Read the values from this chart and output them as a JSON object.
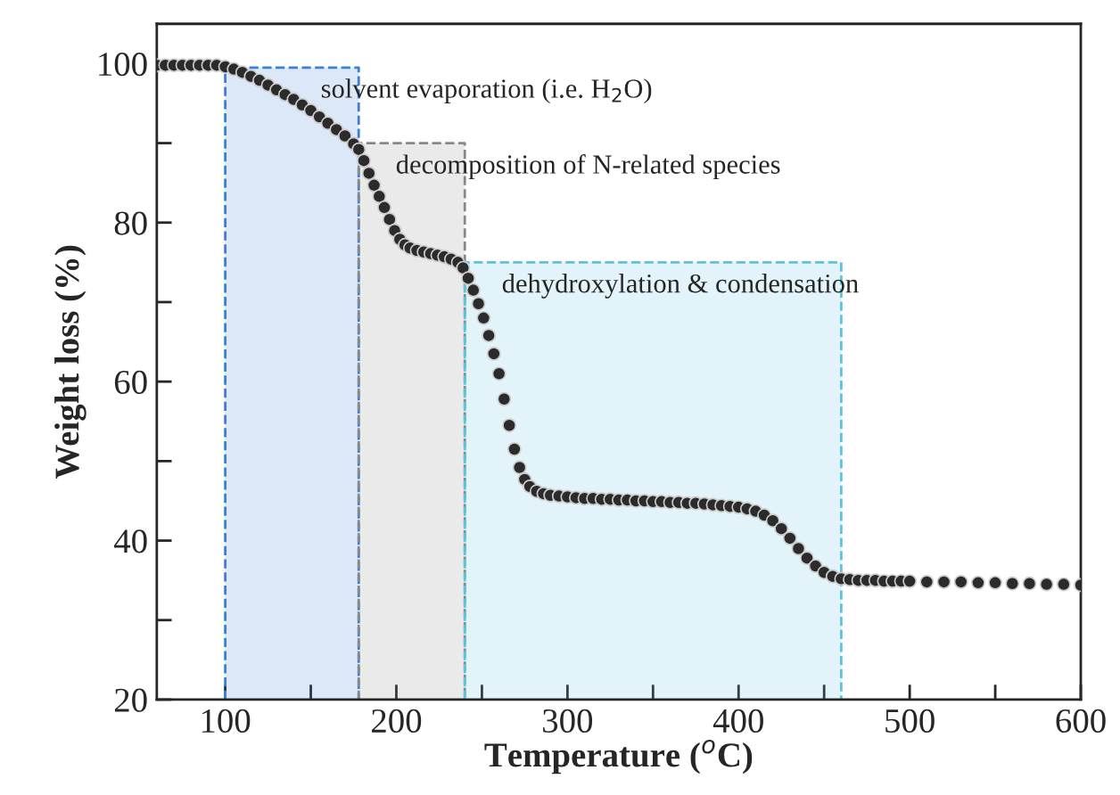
{
  "chart_data": {
    "type": "scatter",
    "xlabel": "Temperature ($^{o}$C)",
    "ylabel": "Weight loss (%)",
    "xlim": [
      60,
      600
    ],
    "ylim": [
      20,
      105
    ],
    "xticks": [
      100,
      {
        "value": 150,
        "label": null
      },
      200,
      {
        "value": 250,
        "label": null
      },
      300,
      {
        "value": 350,
        "label": null
      },
      400,
      {
        "value": 450,
        "label": null
      },
      500,
      {
        "value": 550,
        "label": null
      },
      600
    ],
    "yticks": [
      20,
      {
        "value": 30,
        "label": null
      },
      40,
      {
        "value": 50,
        "label": null
      },
      60,
      {
        "value": 70,
        "label": null
      },
      80,
      {
        "value": 90,
        "label": null
      },
      100
    ],
    "grid": false,
    "legend": false,
    "series": [
      {
        "type": "area",
        "color": "#3b7fd9",
        "line_style": "dashed",
        "x": [
          100,
          178
        ],
        "values": [
          99.5,
          99.5
        ]
      },
      {
        "type": "area",
        "color": "#888888",
        "line_style": "dashed",
        "x": [
          178,
          240
        ],
        "values": [
          90,
          90
        ]
      },
      {
        "type": "area",
        "color": "#5cc3dd",
        "line_style": "dashed",
        "x": [
          240,
          460
        ],
        "values": [
          75,
          75
        ]
      },
      {
        "color": "#2b2b2b",
        "marker": "circle",
        "x": [
          60,
          65,
          70,
          75,
          80,
          85,
          90,
          95,
          100,
          105,
          110,
          115,
          120,
          125,
          130,
          135,
          140,
          145,
          150,
          155,
          160,
          165,
          170,
          175,
          178,
          181,
          184,
          187,
          190,
          193,
          196,
          199,
          202,
          205,
          208,
          212,
          216,
          220,
          224,
          228,
          232,
          236,
          239,
          242,
          245,
          248,
          251,
          254,
          257,
          260,
          263,
          266,
          269,
          272,
          275,
          278,
          282,
          286,
          290,
          295,
          300,
          305,
          310,
          315,
          320,
          325,
          330,
          335,
          340,
          345,
          350,
          355,
          360,
          365,
          370,
          375,
          380,
          385,
          390,
          395,
          400,
          405,
          410,
          415,
          420,
          425,
          430,
          435,
          440,
          445,
          450,
          455,
          460,
          465,
          470,
          475,
          480,
          485,
          490,
          495,
          500,
          510,
          520,
          530,
          540,
          550,
          560,
          570,
          580,
          590,
          600
        ],
        "values": [
          99.8,
          99.8,
          99.8,
          99.8,
          99.8,
          99.8,
          99.8,
          99.8,
          99.6,
          99.3,
          98.9,
          98.4,
          97.9,
          97.3,
          96.7,
          96.1,
          95.5,
          94.8,
          94.1,
          93.3,
          92.5,
          91.7,
          90.9,
          89.9,
          89.2,
          87.8,
          86.2,
          84.7,
          83.3,
          81.9,
          80.4,
          79.0,
          77.9,
          77.2,
          76.8,
          76.5,
          76.3,
          76.1,
          75.9,
          75.7,
          75.4,
          75.0,
          74.3,
          73.0,
          71.5,
          69.8,
          68.0,
          65.8,
          63.5,
          61.0,
          57.8,
          54.5,
          51.5,
          49.2,
          47.7,
          46.8,
          46.2,
          45.9,
          45.7,
          45.6,
          45.5,
          45.4,
          45.3,
          45.3,
          45.2,
          45.2,
          45.1,
          45.1,
          45.0,
          45.0,
          44.9,
          44.9,
          44.8,
          44.8,
          44.7,
          44.7,
          44.6,
          44.5,
          44.4,
          44.3,
          44.2,
          44.0,
          43.7,
          43.2,
          42.5,
          41.5,
          40.3,
          39.0,
          37.8,
          36.8,
          36.0,
          35.5,
          35.2,
          35.1,
          35.0,
          35.0,
          35.0,
          34.9,
          34.9,
          34.9,
          34.9,
          34.8,
          34.8,
          34.8,
          34.7,
          34.7,
          34.6,
          34.6,
          34.5,
          34.5,
          34.4
        ]
      }
    ],
    "annotations": [
      "solvent evaporation (i.e. H$_{2}$O)",
      "decomposition of N-related species",
      "dehydroxylation & condensation"
    ]
  }
}
